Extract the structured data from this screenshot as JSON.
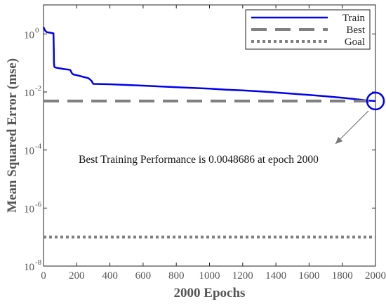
{
  "chart_data": {
    "type": "line",
    "xlabel": "2000 Epochs",
    "ylabel": "Mean Squared Error  (mse)",
    "x_ticks": [
      0,
      200,
      400,
      600,
      800,
      1000,
      1200,
      1400,
      1600,
      1800,
      2000
    ],
    "y_ticks": [
      {
        "base": "10",
        "exp": "0"
      },
      {
        "base": "10",
        "exp": "-2"
      },
      {
        "base": "10",
        "exp": "-4"
      },
      {
        "base": "10",
        "exp": "-6"
      },
      {
        "base": "10",
        "exp": "-8"
      }
    ],
    "y_scale": "log",
    "xlim": [
      0,
      2000
    ],
    "ylim": [
      1e-08,
      10
    ],
    "legend_position": "top-right",
    "series": [
      {
        "name": "Train",
        "color": "#0000ee",
        "style": "solid",
        "x": [
          0,
          10,
          20,
          40,
          60,
          62,
          63,
          65,
          70,
          80,
          100,
          120,
          140,
          160,
          165,
          170,
          180,
          200,
          250,
          270,
          280,
          290,
          295,
          300,
          400,
          500,
          600,
          700,
          800,
          900,
          1000,
          1100,
          1200,
          1300,
          1400,
          1500,
          1600,
          1700,
          1800,
          1900,
          1950,
          2000
        ],
        "y": [
          1.7,
          1.3,
          1.15,
          1.1,
          1.05,
          0.3,
          0.1,
          0.075,
          0.07,
          0.068,
          0.065,
          0.062,
          0.06,
          0.058,
          0.052,
          0.045,
          0.04,
          0.038,
          0.032,
          0.03,
          0.027,
          0.024,
          0.021,
          0.019,
          0.0185,
          0.0175,
          0.0165,
          0.0155,
          0.0146,
          0.0138,
          0.013,
          0.012,
          0.0113,
          0.0105,
          0.0096,
          0.0087,
          0.0079,
          0.0071,
          0.0063,
          0.0055,
          0.0051,
          0.0048686
        ]
      },
      {
        "name": "Best",
        "color": "#808080",
        "style": "dashed",
        "x": [
          0,
          2000
        ],
        "y": [
          0.0048686,
          0.0048686
        ]
      },
      {
        "name": "Goal",
        "color": "#808080",
        "style": "dotted",
        "x": [
          0,
          2000
        ],
        "y": [
          1e-07,
          1e-07
        ]
      }
    ],
    "best_marker": {
      "x": 2000,
      "y": 0.0048686
    },
    "annotation": "Best Training Performance is 0.0048686 at epoch 2000"
  }
}
